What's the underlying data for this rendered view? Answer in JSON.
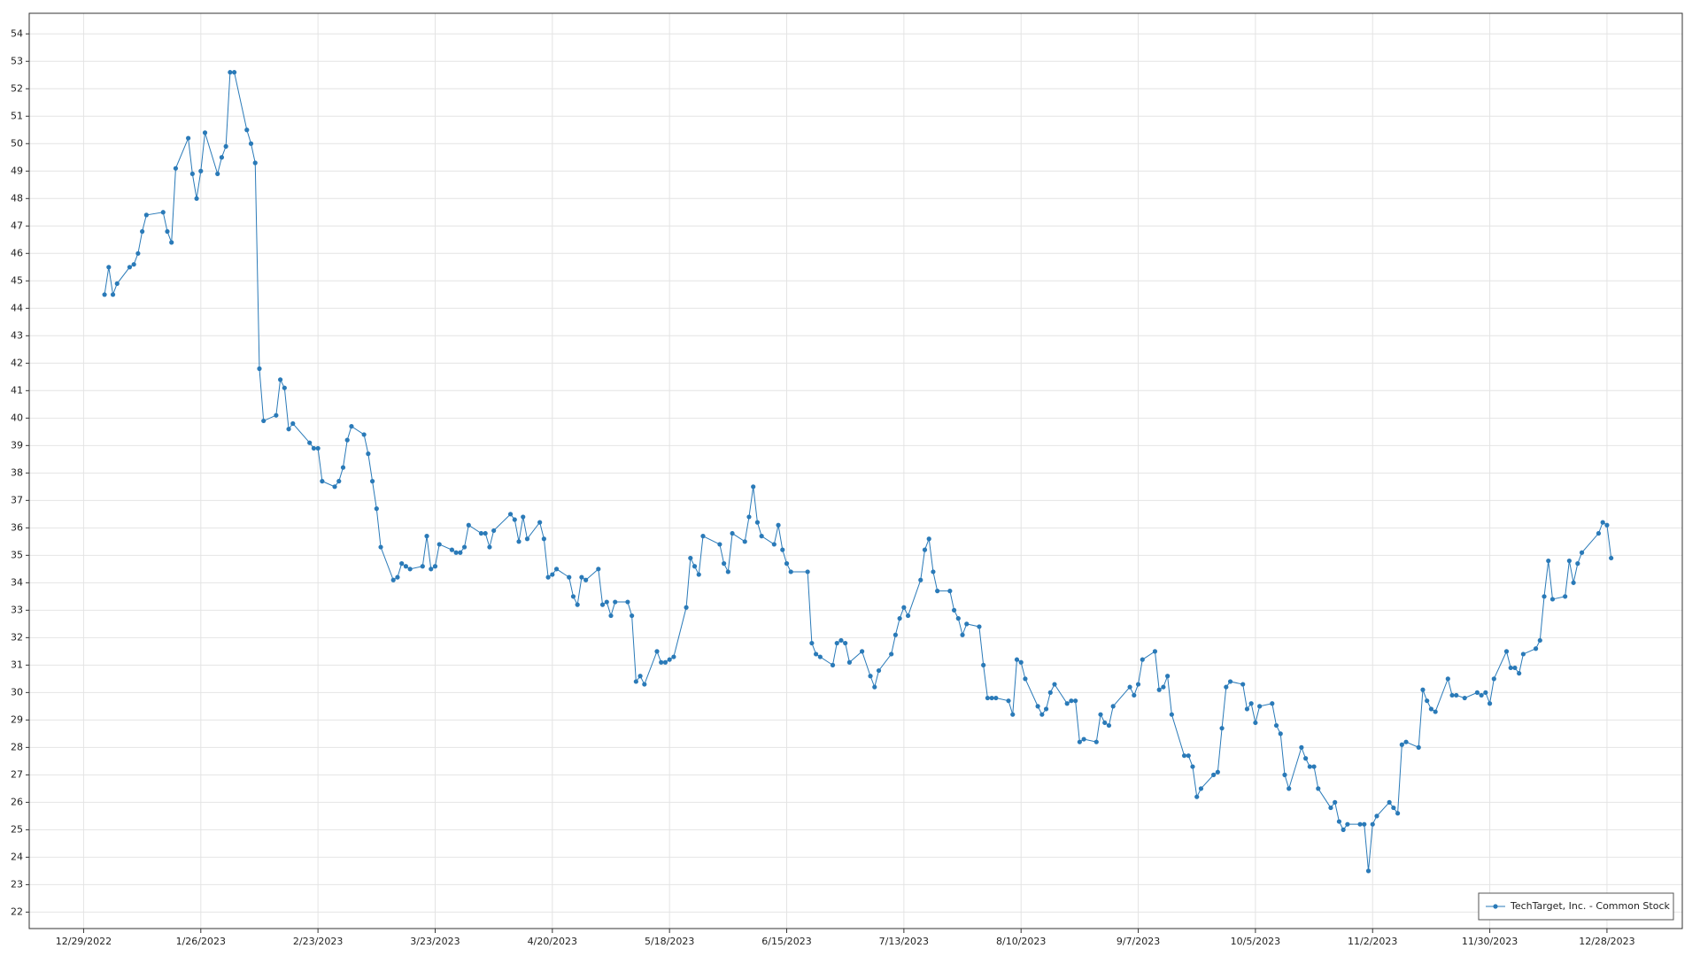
{
  "chart_data": {
    "type": "line",
    "x": [
      "1/3/2023",
      "1/4/2023",
      "1/5/2023",
      "1/6/2023",
      "1/9/2023",
      "1/10/2023",
      "1/11/2023",
      "1/12/2023",
      "1/13/2023",
      "1/17/2023",
      "1/18/2023",
      "1/19/2023",
      "1/20/2023",
      "1/23/2023",
      "1/24/2023",
      "1/25/2023",
      "1/26/2023",
      "1/27/2023",
      "1/30/2023",
      "1/31/2023",
      "2/1/2023",
      "2/2/2023",
      "2/3/2023",
      "2/6/2023",
      "2/7/2023",
      "2/8/2023",
      "2/9/2023",
      "2/10/2023",
      "2/13/2023",
      "2/14/2023",
      "2/15/2023",
      "2/16/2023",
      "2/17/2023",
      "2/21/2023",
      "2/22/2023",
      "2/23/2023",
      "2/24/2023",
      "2/27/2023",
      "2/28/2023",
      "3/1/2023",
      "3/2/2023",
      "3/3/2023",
      "3/6/2023",
      "3/7/2023",
      "3/8/2023",
      "3/9/2023",
      "3/10/2023",
      "3/13/2023",
      "3/14/2023",
      "3/15/2023",
      "3/16/2023",
      "3/17/2023",
      "3/20/2023",
      "3/21/2023",
      "3/22/2023",
      "3/23/2023",
      "3/24/2023",
      "3/27/2023",
      "3/28/2023",
      "3/29/2023",
      "3/30/2023",
      "3/31/2023",
      "4/3/2023",
      "4/4/2023",
      "4/5/2023",
      "4/6/2023",
      "4/10/2023",
      "4/11/2023",
      "4/12/2023",
      "4/13/2023",
      "4/14/2023",
      "4/17/2023",
      "4/18/2023",
      "4/19/2023",
      "4/20/2023",
      "4/21/2023",
      "4/24/2023",
      "4/25/2023",
      "4/26/2023",
      "4/27/2023",
      "4/28/2023",
      "5/1/2023",
      "5/2/2023",
      "5/3/2023",
      "5/4/2023",
      "5/5/2023",
      "5/8/2023",
      "5/9/2023",
      "5/10/2023",
      "5/11/2023",
      "5/12/2023",
      "5/15/2023",
      "5/16/2023",
      "5/17/2023",
      "5/18/2023",
      "5/19/2023",
      "5/22/2023",
      "5/23/2023",
      "5/24/2023",
      "5/25/2023",
      "5/26/2023",
      "5/30/2023",
      "5/31/2023",
      "6/1/2023",
      "6/2/2023",
      "6/5/2023",
      "6/6/2023",
      "6/7/2023",
      "6/8/2023",
      "6/9/2023",
      "6/12/2023",
      "6/13/2023",
      "6/14/2023",
      "6/15/2023",
      "6/16/2023",
      "6/20/2023",
      "6/21/2023",
      "6/22/2023",
      "6/23/2023",
      "6/26/2023",
      "6/27/2023",
      "6/28/2023",
      "6/29/2023",
      "6/30/2023",
      "7/3/2023",
      "7/5/2023",
      "7/6/2023",
      "7/7/2023",
      "7/10/2023",
      "7/11/2023",
      "7/12/2023",
      "7/13/2023",
      "7/14/2023",
      "7/17/2023",
      "7/18/2023",
      "7/19/2023",
      "7/20/2023",
      "7/21/2023",
      "7/24/2023",
      "7/25/2023",
      "7/26/2023",
      "7/27/2023",
      "7/28/2023",
      "7/31/2023",
      "8/1/2023",
      "8/2/2023",
      "8/3/2023",
      "8/4/2023",
      "8/7/2023",
      "8/8/2023",
      "8/9/2023",
      "8/10/2023",
      "8/11/2023",
      "8/14/2023",
      "8/15/2023",
      "8/16/2023",
      "8/17/2023",
      "8/18/2023",
      "8/21/2023",
      "8/22/2023",
      "8/23/2023",
      "8/24/2023",
      "8/25/2023",
      "8/28/2023",
      "8/29/2023",
      "8/30/2023",
      "8/31/2023",
      "9/1/2023",
      "9/5/2023",
      "9/6/2023",
      "9/7/2023",
      "9/8/2023",
      "9/11/2023",
      "9/12/2023",
      "9/13/2023",
      "9/14/2023",
      "9/15/2023",
      "9/18/2023",
      "9/19/2023",
      "9/20/2023",
      "9/21/2023",
      "9/22/2023",
      "9/25/2023",
      "9/26/2023",
      "9/27/2023",
      "9/28/2023",
      "9/29/2023",
      "10/2/2023",
      "10/3/2023",
      "10/4/2023",
      "10/5/2023",
      "10/6/2023",
      "10/9/2023",
      "10/10/2023",
      "10/11/2023",
      "10/12/2023",
      "10/13/2023",
      "10/16/2023",
      "10/17/2023",
      "10/18/2023",
      "10/19/2023",
      "10/20/2023",
      "10/23/2023",
      "10/24/2023",
      "10/25/2023",
      "10/26/2023",
      "10/27/2023",
      "10/30/2023",
      "10/31/2023",
      "11/1/2023",
      "11/2/2023",
      "11/3/2023",
      "11/6/2023",
      "11/7/2023",
      "11/8/2023",
      "11/9/2023",
      "11/10/2023",
      "11/13/2023",
      "11/14/2023",
      "11/15/2023",
      "11/16/2023",
      "11/17/2023",
      "11/20/2023",
      "11/21/2023",
      "11/22/2023",
      "11/24/2023",
      "11/27/2023",
      "11/28/2023",
      "11/29/2023",
      "11/30/2023",
      "12/1/2023",
      "12/4/2023",
      "12/5/2023",
      "12/6/2023",
      "12/7/2023",
      "12/8/2023",
      "12/11/2023",
      "12/12/2023",
      "12/13/2023",
      "12/14/2023",
      "12/15/2023",
      "12/18/2023",
      "12/19/2023",
      "12/20/2023",
      "12/21/2023",
      "12/22/2023",
      "12/26/2023",
      "12/27/2023",
      "12/28/2023",
      "12/29/2023"
    ],
    "series": [
      {
        "name": "TechTarget, Inc. - Common Stock",
        "color": "#2a7ab8",
        "values": [
          44.5,
          45.5,
          44.5,
          44.9,
          45.5,
          45.6,
          46.0,
          46.8,
          47.4,
          47.5,
          46.8,
          46.4,
          49.1,
          50.2,
          48.9,
          48.0,
          49.0,
          50.4,
          48.9,
          49.5,
          49.9,
          52.6,
          52.6,
          50.5,
          50.0,
          49.3,
          41.8,
          39.9,
          40.1,
          41.4,
          41.1,
          39.6,
          39.8,
          39.1,
          38.9,
          38.9,
          37.7,
          37.5,
          37.7,
          38.2,
          39.2,
          39.7,
          39.4,
          38.7,
          37.7,
          36.7,
          35.3,
          34.1,
          34.2,
          34.7,
          34.6,
          34.5,
          34.6,
          35.7,
          34.5,
          34.6,
          35.4,
          35.2,
          35.1,
          35.1,
          35.3,
          36.1,
          35.8,
          35.8,
          35.3,
          35.9,
          36.5,
          36.3,
          35.5,
          36.4,
          35.6,
          36.2,
          35.6,
          34.2,
          34.3,
          34.5,
          34.2,
          33.5,
          33.2,
          34.2,
          34.1,
          34.5,
          33.2,
          33.3,
          32.8,
          33.3,
          33.3,
          32.8,
          30.4,
          30.6,
          30.3,
          31.5,
          31.1,
          31.1,
          31.2,
          31.3,
          33.1,
          34.9,
          34.6,
          34.3,
          35.7,
          35.4,
          34.7,
          34.4,
          35.8,
          35.5,
          36.4,
          37.5,
          36.2,
          35.7,
          35.4,
          36.1,
          35.2,
          34.7,
          34.4,
          34.4,
          31.8,
          31.4,
          31.3,
          31.0,
          31.8,
          31.9,
          31.8,
          31.1,
          31.5,
          30.6,
          30.2,
          30.8,
          31.4,
          32.1,
          32.7,
          33.1,
          32.8,
          34.1,
          35.2,
          35.6,
          34.4,
          33.7,
          33.7,
          33.0,
          32.7,
          32.1,
          32.5,
          32.4,
          31.0,
          29.8,
          29.8,
          29.8,
          29.7,
          29.2,
          31.2,
          31.1,
          30.5,
          29.5,
          29.2,
          29.4,
          30.0,
          30.3,
          29.6,
          29.7,
          29.7,
          28.2,
          28.3,
          28.2,
          29.2,
          28.9,
          28.8,
          29.5,
          30.2,
          29.9,
          30.3,
          31.2,
          31.5,
          30.1,
          30.2,
          30.6,
          29.2,
          27.7,
          27.7,
          27.3,
          26.2,
          26.5,
          27.0,
          27.1,
          28.7,
          30.2,
          30.4,
          30.3,
          29.4,
          29.6,
          28.9,
          29.5,
          29.6,
          28.8,
          28.5,
          27.0,
          26.5,
          28.0,
          27.6,
          27.3,
          27.3,
          26.5,
          25.8,
          26.0,
          25.3,
          25.0,
          25.2,
          25.2,
          25.2,
          23.5,
          25.2,
          25.5,
          26.0,
          25.8,
          25.6,
          28.1,
          28.2,
          28.0,
          30.1,
          29.7,
          29.4,
          29.3,
          30.5,
          29.9,
          29.9,
          29.8,
          30.0,
          29.9,
          30.0,
          29.6,
          30.5,
          31.5,
          30.9,
          30.9,
          30.7,
          31.4,
          31.6,
          31.9,
          33.5,
          34.8,
          33.4,
          33.5,
          34.8,
          34.0,
          34.7,
          35.1,
          35.8,
          36.2,
          36.1,
          34.9
        ]
      }
    ],
    "xlim": [
      "12/16/2022",
      "1/15/2024"
    ],
    "xticks": [
      "12/29/2022",
      "1/26/2023",
      "2/23/2023",
      "3/23/2023",
      "4/20/2023",
      "5/18/2023",
      "6/15/2023",
      "7/13/2023",
      "8/10/2023",
      "9/7/2023",
      "10/5/2023",
      "11/2/2023",
      "11/30/2023",
      "12/28/2023"
    ],
    "ylim": [
      21.4,
      54.75
    ],
    "yticks": [
      22,
      23,
      24,
      25,
      26,
      27,
      28,
      29,
      30,
      31,
      32,
      33,
      34,
      35,
      36,
      37,
      38,
      39,
      40,
      41,
      42,
      43,
      44,
      45,
      46,
      47,
      48,
      49,
      50,
      51,
      52,
      53,
      54
    ],
    "grid": true,
    "legend": "bottom-right"
  }
}
